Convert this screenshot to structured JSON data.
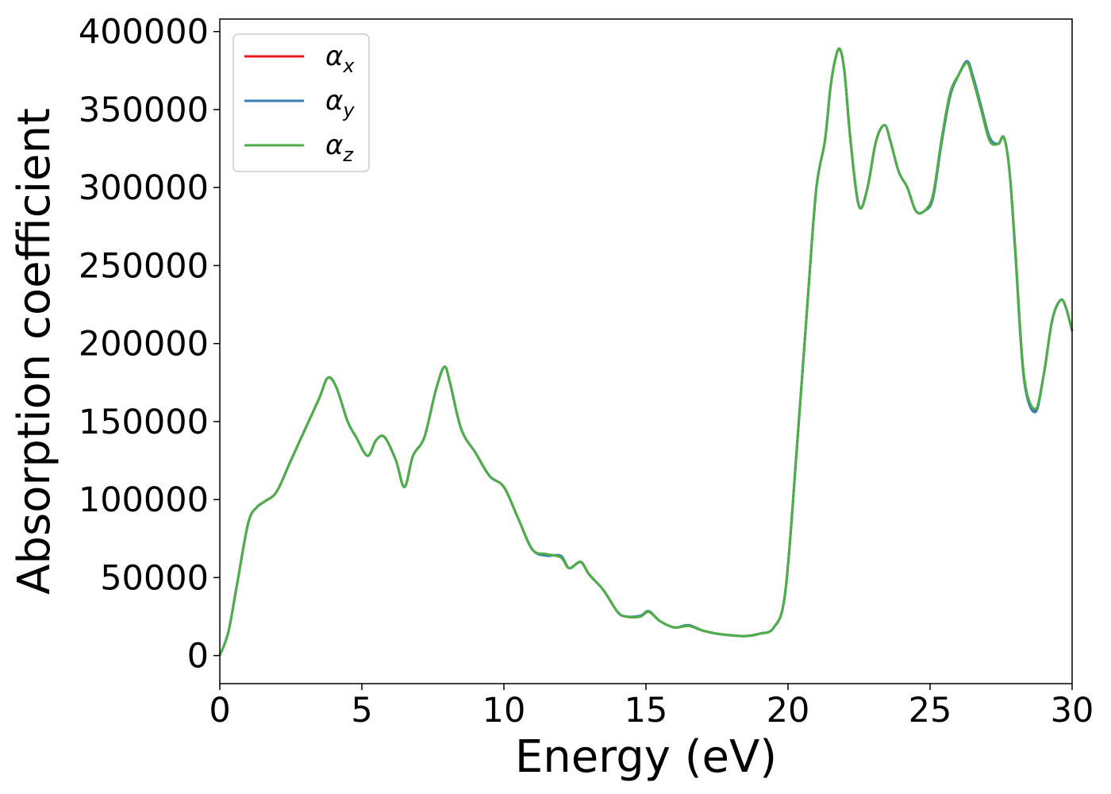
{
  "chart_data": {
    "type": "line",
    "title": "",
    "xlabel": "Energy (eV)",
    "ylabel": "Absorption coefficient",
    "xlim": [
      0,
      30
    ],
    "ylim": [
      -18000,
      408000
    ],
    "xticks": [
      0,
      5,
      10,
      15,
      20,
      25,
      30
    ],
    "yticks": [
      0,
      50000,
      100000,
      150000,
      200000,
      250000,
      300000,
      350000,
      400000
    ],
    "grid": false,
    "legend_position": "top-left",
    "series": [
      {
        "name": "α",
        "subscript": "x",
        "color": "#e41a1c",
        "x": [
          0,
          0.3,
          0.6,
          1.0,
          1.3,
          1.6,
          2.0,
          2.5,
          3.0,
          3.5,
          3.8,
          4.1,
          4.5,
          4.8,
          5.2,
          5.5,
          5.8,
          6.2,
          6.5,
          6.8,
          7.2,
          7.6,
          7.9,
          8.1,
          8.5,
          9.0,
          9.5,
          10.0,
          10.5,
          11.0,
          11.5,
          12.0,
          12.3,
          12.7,
          13.0,
          13.5,
          14.0,
          14.3,
          14.8,
          15.1,
          15.5,
          16.0,
          16.5,
          17.0,
          17.5,
          18.0,
          18.5,
          19.0,
          19.5,
          19.9,
          20.3,
          20.7,
          21.0,
          21.3,
          21.5,
          21.7,
          21.85,
          22.0,
          22.2,
          22.5,
          22.8,
          23.1,
          23.4,
          23.6,
          23.9,
          24.2,
          24.5,
          24.8,
          25.1,
          25.4,
          25.7,
          26.0,
          26.3,
          26.5,
          26.8,
          27.1,
          27.4,
          27.6,
          27.8,
          28.0,
          28.3,
          28.7,
          29.0,
          29.3,
          29.6,
          29.8,
          30.0
        ],
        "values": [
          0,
          15000,
          45000,
          85000,
          95000,
          99000,
          105000,
          125000,
          145000,
          165000,
          178000,
          172000,
          150000,
          140000,
          128000,
          138000,
          140000,
          125000,
          108000,
          128000,
          140000,
          170000,
          185000,
          175000,
          145000,
          130000,
          115000,
          108000,
          88000,
          68000,
          65000,
          63000,
          56000,
          60000,
          52000,
          42000,
          28000,
          25000,
          25000,
          28000,
          22000,
          18000,
          19000,
          16000,
          14000,
          13000,
          12500,
          14000,
          18000,
          40000,
          130000,
          230000,
          300000,
          330000,
          365000,
          385000,
          388000,
          372000,
          330000,
          288000,
          300000,
          330000,
          340000,
          330000,
          310000,
          300000,
          285000,
          285000,
          295000,
          330000,
          360000,
          372000,
          380000,
          370000,
          350000,
          330000,
          328000,
          332000,
          310000,
          260000,
          180000,
          157000,
          180000,
          215000,
          228000,
          222000,
          208000
        ]
      },
      {
        "name": "α",
        "subscript": "y",
        "color": "#377eb8",
        "x": [
          0,
          0.3,
          0.6,
          1.0,
          1.3,
          1.6,
          2.0,
          2.5,
          3.0,
          3.5,
          3.8,
          4.1,
          4.5,
          4.8,
          5.2,
          5.5,
          5.8,
          6.2,
          6.5,
          6.8,
          7.2,
          7.6,
          7.9,
          8.1,
          8.5,
          9.0,
          9.5,
          10.0,
          10.5,
          11.0,
          11.5,
          12.0,
          12.3,
          12.7,
          13.0,
          13.5,
          14.0,
          14.3,
          14.8,
          15.1,
          15.5,
          16.0,
          16.5,
          17.0,
          17.5,
          18.0,
          18.5,
          19.0,
          19.5,
          19.9,
          20.3,
          20.7,
          21.0,
          21.3,
          21.5,
          21.7,
          21.85,
          22.0,
          22.2,
          22.5,
          22.8,
          23.1,
          23.4,
          23.6,
          23.9,
          24.2,
          24.5,
          24.8,
          25.1,
          25.4,
          25.7,
          26.0,
          26.3,
          26.5,
          26.8,
          27.1,
          27.4,
          27.6,
          27.8,
          28.0,
          28.3,
          28.7,
          29.0,
          29.3,
          29.6,
          29.8,
          30.0
        ],
        "values": [
          0,
          15000,
          45000,
          85000,
          95000,
          99000,
          105000,
          125000,
          145000,
          165000,
          178000,
          172000,
          150000,
          140000,
          128000,
          138000,
          140000,
          125000,
          108000,
          128000,
          140000,
          170000,
          185000,
          175000,
          145000,
          130000,
          115000,
          108000,
          88000,
          68000,
          64000,
          64000,
          56000,
          60000,
          52000,
          42000,
          28000,
          25000,
          25500,
          28500,
          22000,
          18000,
          19500,
          16000,
          14000,
          13000,
          12500,
          14000,
          18000,
          40000,
          130000,
          230000,
          300000,
          330000,
          365000,
          385000,
          388000,
          372000,
          330000,
          288000,
          300000,
          330000,
          340000,
          330000,
          310000,
          300000,
          285000,
          285000,
          293000,
          328000,
          358000,
          372000,
          381000,
          372000,
          352000,
          332000,
          328000,
          332000,
          310000,
          258000,
          178000,
          156000,
          180000,
          215000,
          228000,
          222000,
          208000
        ]
      },
      {
        "name": "α",
        "subscript": "z",
        "color": "#4daf4a",
        "x": [
          0,
          0.3,
          0.6,
          1.0,
          1.3,
          1.6,
          2.0,
          2.5,
          3.0,
          3.5,
          3.8,
          4.1,
          4.5,
          4.8,
          5.2,
          5.5,
          5.8,
          6.2,
          6.5,
          6.8,
          7.2,
          7.6,
          7.9,
          8.1,
          8.5,
          9.0,
          9.5,
          10.0,
          10.5,
          11.0,
          11.5,
          12.0,
          12.3,
          12.7,
          13.0,
          13.5,
          14.0,
          14.3,
          14.8,
          15.1,
          15.5,
          16.0,
          16.5,
          17.0,
          17.5,
          18.0,
          18.5,
          19.0,
          19.5,
          19.9,
          20.3,
          20.7,
          21.0,
          21.3,
          21.5,
          21.7,
          21.85,
          22.0,
          22.2,
          22.5,
          22.8,
          23.1,
          23.4,
          23.6,
          23.9,
          24.2,
          24.5,
          24.8,
          25.1,
          25.4,
          25.7,
          26.0,
          26.3,
          26.5,
          26.8,
          27.1,
          27.4,
          27.6,
          27.8,
          28.0,
          28.3,
          28.7,
          29.0,
          29.3,
          29.6,
          29.8,
          30.0
        ],
        "values": [
          0,
          15000,
          45000,
          85000,
          95000,
          99000,
          105000,
          125000,
          145000,
          165000,
          178000,
          172000,
          150000,
          140000,
          128000,
          138000,
          140000,
          125000,
          108000,
          128000,
          140000,
          170000,
          185000,
          175000,
          145000,
          130000,
          115000,
          108000,
          88000,
          68000,
          65000,
          63000,
          56000,
          60000,
          52000,
          42000,
          28000,
          25000,
          25000,
          28000,
          22000,
          18000,
          19000,
          16000,
          14000,
          13000,
          12500,
          14000,
          18000,
          40000,
          130000,
          230000,
          300000,
          330000,
          365000,
          385000,
          388000,
          372000,
          330000,
          288000,
          300000,
          330000,
          340000,
          330000,
          310000,
          300000,
          285000,
          285000,
          295000,
          330000,
          360000,
          372000,
          380000,
          370000,
          350000,
          330000,
          328000,
          332000,
          310000,
          260000,
          180000,
          158000,
          180000,
          215000,
          228000,
          222000,
          208000
        ]
      }
    ]
  }
}
